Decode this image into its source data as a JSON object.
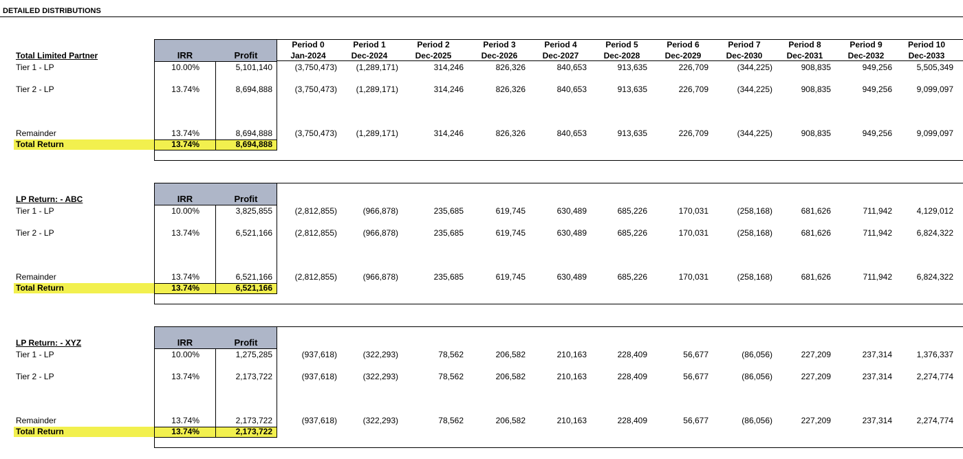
{
  "title": "DETAILED DISTRIBUTIONS",
  "periods": [
    {
      "name": "Period 0",
      "date": "Jan-2024"
    },
    {
      "name": "Period 1",
      "date": "Dec-2024"
    },
    {
      "name": "Period 2",
      "date": "Dec-2025"
    },
    {
      "name": "Period 3",
      "date": "Dec-2026"
    },
    {
      "name": "Period 4",
      "date": "Dec-2027"
    },
    {
      "name": "Period 5",
      "date": "Dec-2028"
    },
    {
      "name": "Period 6",
      "date": "Dec-2029"
    },
    {
      "name": "Period 7",
      "date": "Dec-2030"
    },
    {
      "name": "Period 8",
      "date": "Dec-2031"
    },
    {
      "name": "Period 9",
      "date": "Dec-2032"
    },
    {
      "name": "Period 10",
      "date": "Dec-2033"
    }
  ],
  "sections": [
    {
      "title": "Total Limited Partner",
      "headers": [
        "IRR",
        "Profit"
      ],
      "rows": [
        {
          "label": "Tier 1 - LP",
          "irr": "10.00%",
          "profit": "5,101,140",
          "values": [
            "(3,750,473)",
            "(1,289,171)",
            "314,246",
            "826,326",
            "840,653",
            "913,635",
            "226,709",
            "(344,225)",
            "908,835",
            "949,256",
            "5,505,349"
          ]
        },
        {
          "label": "Tier 2 - LP",
          "irr": "13.74%",
          "profit": "8,694,888",
          "values": [
            "(3,750,473)",
            "(1,289,171)",
            "314,246",
            "826,326",
            "840,653",
            "913,635",
            "226,709",
            "(344,225)",
            "908,835",
            "949,256",
            "9,099,097"
          ]
        },
        {
          "label": "Remainder",
          "irr": "13.74%",
          "profit": "8,694,888",
          "values": [
            "(3,750,473)",
            "(1,289,171)",
            "314,246",
            "826,326",
            "840,653",
            "913,635",
            "226,709",
            "(344,225)",
            "908,835",
            "949,256",
            "9,099,097"
          ]
        }
      ],
      "total": {
        "label": "Total Return",
        "irr": "13.74%",
        "profit": "8,694,888"
      }
    },
    {
      "title": "LP Return: - ABC",
      "headers": [
        "IRR",
        "Profit"
      ],
      "rows": [
        {
          "label": "Tier 1 - LP",
          "irr": "10.00%",
          "profit": "3,825,855",
          "values": [
            "(2,812,855)",
            "(966,878)",
            "235,685",
            "619,745",
            "630,489",
            "685,226",
            "170,031",
            "(258,168)",
            "681,626",
            "711,942",
            "4,129,012"
          ]
        },
        {
          "label": "Tier 2 - LP",
          "irr": "13.74%",
          "profit": "6,521,166",
          "values": [
            "(2,812,855)",
            "(966,878)",
            "235,685",
            "619,745",
            "630,489",
            "685,226",
            "170,031",
            "(258,168)",
            "681,626",
            "711,942",
            "6,824,322"
          ]
        },
        {
          "label": "Remainder",
          "irr": "13.74%",
          "profit": "6,521,166",
          "values": [
            "(2,812,855)",
            "(966,878)",
            "235,685",
            "619,745",
            "630,489",
            "685,226",
            "170,031",
            "(258,168)",
            "681,626",
            "711,942",
            "6,824,322"
          ]
        }
      ],
      "total": {
        "label": "Total Return",
        "irr": "13.74%",
        "profit": "6,521,166"
      }
    },
    {
      "title": "LP Return: - XYZ",
      "headers": [
        "IRR",
        "Profit"
      ],
      "rows": [
        {
          "label": "Tier 1 - LP",
          "irr": "10.00%",
          "profit": "1,275,285",
          "values": [
            "(937,618)",
            "(322,293)",
            "78,562",
            "206,582",
            "210,163",
            "228,409",
            "56,677",
            "(86,056)",
            "227,209",
            "237,314",
            "1,376,337"
          ]
        },
        {
          "label": "Tier 2 - LP",
          "irr": "13.74%",
          "profit": "2,173,722",
          "values": [
            "(937,618)",
            "(322,293)",
            "78,562",
            "206,582",
            "210,163",
            "228,409",
            "56,677",
            "(86,056)",
            "227,209",
            "237,314",
            "2,274,774"
          ]
        },
        {
          "label": "Remainder",
          "irr": "13.74%",
          "profit": "2,173,722",
          "values": [
            "(937,618)",
            "(322,293)",
            "78,562",
            "206,582",
            "210,163",
            "228,409",
            "56,677",
            "(86,056)",
            "227,209",
            "237,314",
            "2,274,774"
          ]
        }
      ],
      "total": {
        "label": "Total Return",
        "irr": "13.74%",
        "profit": "2,173,722"
      }
    }
  ]
}
